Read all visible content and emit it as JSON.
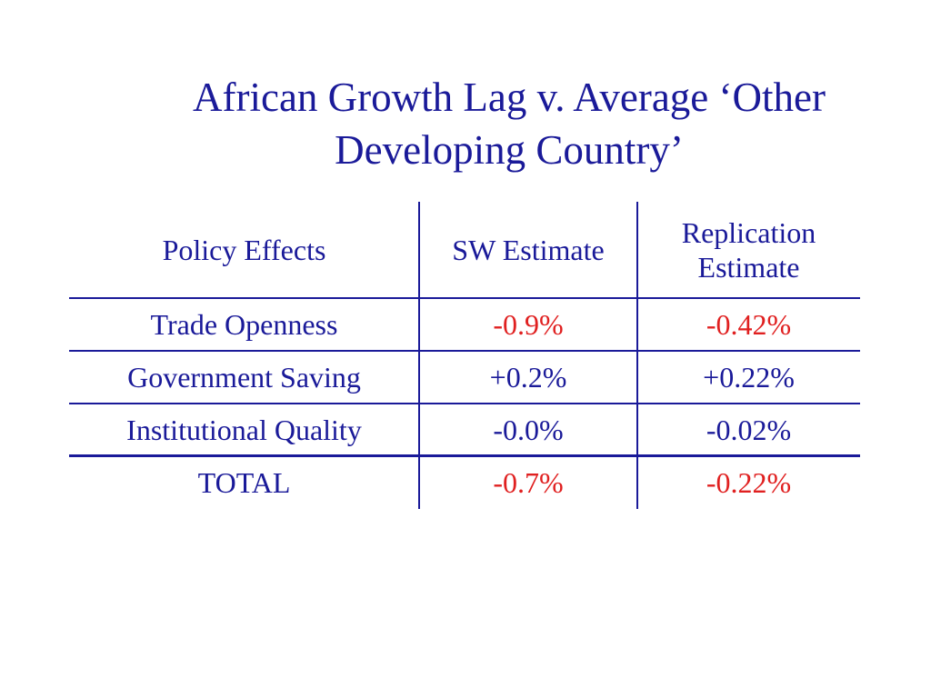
{
  "title": {
    "line1": "African Growth Lag v. Average ‘Other",
    "line2": "Developing Country’"
  },
  "table": {
    "headers": {
      "col1": "Policy Effects",
      "col2": "SW Estimate",
      "col3_line1": "Replication",
      "col3_line2": "Estimate"
    },
    "rows": [
      {
        "label": "Trade Openness",
        "sw": "-0.9%",
        "replication": "-0.42%"
      },
      {
        "label": "Government Saving",
        "sw": "+0.2%",
        "replication": "+0.22%"
      },
      {
        "label": "Institutional Quality",
        "sw": "-0.0%",
        "replication": "-0.02%"
      },
      {
        "label": "TOTAL",
        "sw": "-0.7%",
        "replication": "-0.22%"
      }
    ]
  },
  "colors": {
    "text": "#1a1a99",
    "highlight": "#e02020",
    "background": "#ffffff"
  }
}
